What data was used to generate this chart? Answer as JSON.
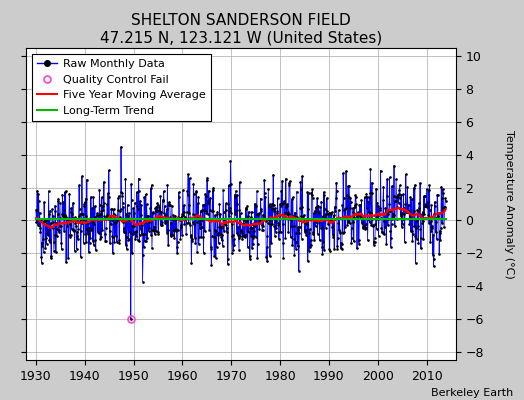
{
  "title": "SHELTON SANDERSON FIELD",
  "subtitle": "47.215 N, 123.121 W (United States)",
  "ylabel": "Temperature Anomaly (°C)",
  "attribution": "Berkeley Earth",
  "xlim": [
    1928,
    2016
  ],
  "ylim": [
    -8.5,
    10.5
  ],
  "yticks": [
    -8,
    -6,
    -4,
    -2,
    0,
    2,
    4,
    6,
    8,
    10
  ],
  "xticks": [
    1930,
    1940,
    1950,
    1960,
    1970,
    1980,
    1990,
    2000,
    2010
  ],
  "raw_color": "#0000ff",
  "moving_avg_color": "#ff0000",
  "trend_color": "#00bb00",
  "qc_fail_color": "#ff44cc",
  "background_color": "#cccccc",
  "plot_bg_color": "#ffffff",
  "grid_color": "#aaaaaa",
  "seed": 42,
  "start_year": 1930,
  "end_year": 2013,
  "months_per_year": 12,
  "qc_fail_year": 1949,
  "qc_fail_month": 5,
  "qc_fail_value": -6.0,
  "noise_std": 1.5,
  "moving_avg_window": 60,
  "title_fontsize": 11,
  "subtitle_fontsize": 9,
  "tick_fontsize": 9,
  "ylabel_fontsize": 8,
  "legend_fontsize": 8,
  "attr_fontsize": 8
}
